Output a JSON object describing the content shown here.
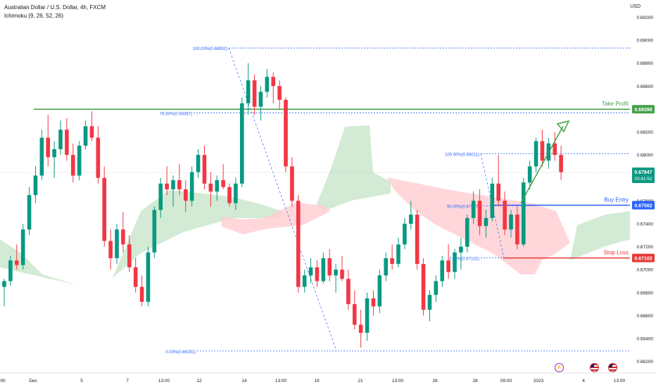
{
  "header": {
    "title": "Australian Dollar / U.S. Dollar, 4h, FXCM",
    "indicator": "Ichimoku (9, 26, 52, 26)"
  },
  "price_axis": {
    "currency": "USD",
    "ticks": [
      "0.69200",
      "0.69000",
      "0.68800",
      "0.68600",
      "0.68400",
      "0.68200",
      "0.68000",
      "0.67800",
      "0.67600",
      "0.67400",
      "0.67200",
      "0.67000",
      "0.66800",
      "0.66600",
      "0.66400",
      "0.66200"
    ]
  },
  "time_axis": {
    "labels": [
      "00",
      "Dec",
      "5",
      "7",
      "13:00",
      "12",
      "14",
      "13:00",
      "19",
      "21",
      "13:00",
      "26",
      "28",
      "09:00",
      "2023",
      "4",
      "13:00"
    ]
  },
  "colors": {
    "up": "#089981",
    "down": "#f23645",
    "take_profit": "#43a047",
    "buy_entry": "#2962ff",
    "stop_loss": "#e53935",
    "fib": "#2962ff",
    "cloud_bull": "#c8e6c9",
    "cloud_bear": "#ffcdd2"
  },
  "chart_data": {
    "type": "candlestick",
    "title": "Australian Dollar / U.S. Dollar, 4h, FXCM",
    "ylim": [
      0.661,
      0.6935
    ],
    "y_ticks": [
      0.692,
      0.69,
      0.688,
      0.686,
      0.684,
      0.682,
      0.68,
      0.678,
      0.676,
      0.674,
      0.672,
      0.67,
      0.668,
      0.666,
      0.664,
      0.662
    ],
    "candles": [
      [
        0.6685,
        0.6692,
        0.6668,
        0.669
      ],
      [
        0.669,
        0.6712,
        0.6686,
        0.6708
      ],
      [
        0.6708,
        0.6722,
        0.67,
        0.6704
      ],
      [
        0.6704,
        0.674,
        0.67,
        0.6735
      ],
      [
        0.6735,
        0.6772,
        0.673,
        0.6765
      ],
      [
        0.6765,
        0.679,
        0.6758,
        0.6782
      ],
      [
        0.6782,
        0.6822,
        0.6778,
        0.6815
      ],
      [
        0.6815,
        0.6835,
        0.679,
        0.6798
      ],
      [
        0.6798,
        0.6812,
        0.678,
        0.6805
      ],
      [
        0.6805,
        0.683,
        0.68,
        0.6822
      ],
      [
        0.6822,
        0.6832,
        0.6795,
        0.68
      ],
      [
        0.68,
        0.681,
        0.6776,
        0.6782
      ],
      [
        0.6782,
        0.6812,
        0.6778,
        0.6808
      ],
      [
        0.6808,
        0.683,
        0.6805,
        0.6825
      ],
      [
        0.6825,
        0.6838,
        0.6812,
        0.6815
      ],
      [
        0.6815,
        0.6825,
        0.6775,
        0.678
      ],
      [
        0.678,
        0.679,
        0.672,
        0.6725
      ],
      [
        0.6725,
        0.6735,
        0.67,
        0.671
      ],
      [
        0.671,
        0.674,
        0.6705,
        0.6735
      ],
      [
        0.6735,
        0.675,
        0.6715,
        0.6722
      ],
      [
        0.6722,
        0.673,
        0.6698,
        0.6702
      ],
      [
        0.6702,
        0.671,
        0.668,
        0.6685
      ],
      [
        0.6685,
        0.6695,
        0.6668,
        0.6672
      ],
      [
        0.6672,
        0.672,
        0.6668,
        0.6715
      ],
      [
        0.6715,
        0.6755,
        0.671,
        0.6752
      ],
      [
        0.6752,
        0.678,
        0.6745,
        0.6775
      ],
      [
        0.6775,
        0.679,
        0.6765,
        0.677
      ],
      [
        0.677,
        0.6782,
        0.6755,
        0.6778
      ],
      [
        0.6778,
        0.6792,
        0.6765,
        0.677
      ],
      [
        0.677,
        0.6778,
        0.675,
        0.676
      ],
      [
        0.676,
        0.679,
        0.6755,
        0.6785
      ],
      [
        0.6785,
        0.6805,
        0.678,
        0.68
      ],
      [
        0.68,
        0.6808,
        0.677,
        0.6775
      ],
      [
        0.6775,
        0.6785,
        0.6755,
        0.6768
      ],
      [
        0.6768,
        0.6782,
        0.676,
        0.6778
      ],
      [
        0.6778,
        0.6792,
        0.677,
        0.6772
      ],
      [
        0.6772,
        0.6775,
        0.6755,
        0.6758
      ],
      [
        0.6758,
        0.678,
        0.6752,
        0.6775
      ],
      [
        0.6775,
        0.685,
        0.6772,
        0.6845
      ],
      [
        0.6845,
        0.688,
        0.6835,
        0.6865
      ],
      [
        0.6865,
        0.687,
        0.6835,
        0.6842
      ],
      [
        0.6842,
        0.686,
        0.683,
        0.6855
      ],
      [
        0.6855,
        0.6875,
        0.685,
        0.6868
      ],
      [
        0.6868,
        0.6872,
        0.6845,
        0.686
      ],
      [
        0.686,
        0.6865,
        0.684,
        0.6848
      ],
      [
        0.6848,
        0.685,
        0.6785,
        0.679
      ],
      [
        0.679,
        0.6798,
        0.6755,
        0.676
      ],
      [
        0.676,
        0.6765,
        0.668,
        0.6685
      ],
      [
        0.6685,
        0.67,
        0.668,
        0.6695
      ],
      [
        0.6695,
        0.671,
        0.6688,
        0.6702
      ],
      [
        0.6702,
        0.6708,
        0.6685,
        0.669
      ],
      [
        0.669,
        0.6715,
        0.6688,
        0.671
      ],
      [
        0.671,
        0.6718,
        0.669,
        0.6695
      ],
      [
        0.6695,
        0.6705,
        0.668,
        0.67
      ],
      [
        0.67,
        0.6712,
        0.669,
        0.6692
      ],
      [
        0.6692,
        0.67,
        0.6665,
        0.667
      ],
      [
        0.667,
        0.6682,
        0.6648,
        0.6652
      ],
      [
        0.6652,
        0.6665,
        0.6632,
        0.6645
      ],
      [
        0.6645,
        0.668,
        0.6638,
        0.6675
      ],
      [
        0.6675,
        0.6682,
        0.666,
        0.6668
      ],
      [
        0.6668,
        0.67,
        0.6662,
        0.6695
      ],
      [
        0.6695,
        0.6715,
        0.669,
        0.671
      ],
      [
        0.671,
        0.6722,
        0.67,
        0.6705
      ],
      [
        0.6705,
        0.6728,
        0.6702,
        0.6722
      ],
      [
        0.6722,
        0.6745,
        0.6718,
        0.674
      ],
      [
        0.674,
        0.676,
        0.6735,
        0.6748
      ],
      [
        0.6748,
        0.6752,
        0.67,
        0.6705
      ],
      [
        0.6705,
        0.671,
        0.666,
        0.6665
      ],
      [
        0.6665,
        0.6682,
        0.6655,
        0.6678
      ],
      [
        0.6678,
        0.6695,
        0.6672,
        0.669
      ],
      [
        0.669,
        0.6712,
        0.6685,
        0.6708
      ],
      [
        0.6708,
        0.6722,
        0.6692,
        0.6698
      ],
      [
        0.6698,
        0.6718,
        0.6692,
        0.6715
      ],
      [
        0.6715,
        0.6728,
        0.67,
        0.672
      ],
      [
        0.672,
        0.6748,
        0.6715,
        0.6745
      ],
      [
        0.6745,
        0.6768,
        0.674,
        0.676
      ],
      [
        0.676,
        0.677,
        0.673,
        0.6738
      ],
      [
        0.6738,
        0.6752,
        0.6728,
        0.6745
      ],
      [
        0.6745,
        0.678,
        0.6742,
        0.6775
      ],
      [
        0.6775,
        0.68,
        0.6755,
        0.676
      ],
      [
        0.676,
        0.6768,
        0.673,
        0.6735
      ],
      [
        0.6735,
        0.6752,
        0.6728,
        0.6748
      ],
      [
        0.6748,
        0.6755,
        0.6718,
        0.6722
      ],
      [
        0.6722,
        0.678,
        0.672,
        0.6776
      ],
      [
        0.6776,
        0.6795,
        0.677,
        0.679
      ],
      [
        0.679,
        0.6815,
        0.6785,
        0.6812
      ],
      [
        0.6812,
        0.6822,
        0.679,
        0.6795
      ],
      [
        0.6795,
        0.6815,
        0.6788,
        0.681
      ],
      [
        0.681,
        0.682,
        0.6795,
        0.68
      ],
      [
        0.68,
        0.6808,
        0.6778,
        0.6785
      ]
    ],
    "fib_levels": [
      {
        "label": "100.00%(0.68932)",
        "value": 0.68932
      },
      {
        "label": "78.60%(0.68367)",
        "value": 0.68367
      },
      {
        "label": "0.00%(0.66291)",
        "value": 0.66291
      },
      {
        "label": "100.00%(0.68011)",
        "value": 0.68011
      },
      {
        "label": "50.00%(0.67557)",
        "value": 0.67557
      },
      {
        "label": "0.00%(0.67102)",
        "value": 0.67102
      }
    ],
    "levels": {
      "take_profit": {
        "label": "Take Profit",
        "value": 0.68398,
        "price_label": "0.68398"
      },
      "buy_entry": {
        "label": "Buy Entry",
        "value": 0.67562,
        "price_label": "0.67562"
      },
      "stop_loss": {
        "label": "Stop Loss",
        "value": 0.67102,
        "price_label": "0.67102"
      },
      "current": {
        "price_label": "0.67847",
        "timer": "03:41:52",
        "value": 0.67847
      }
    }
  }
}
